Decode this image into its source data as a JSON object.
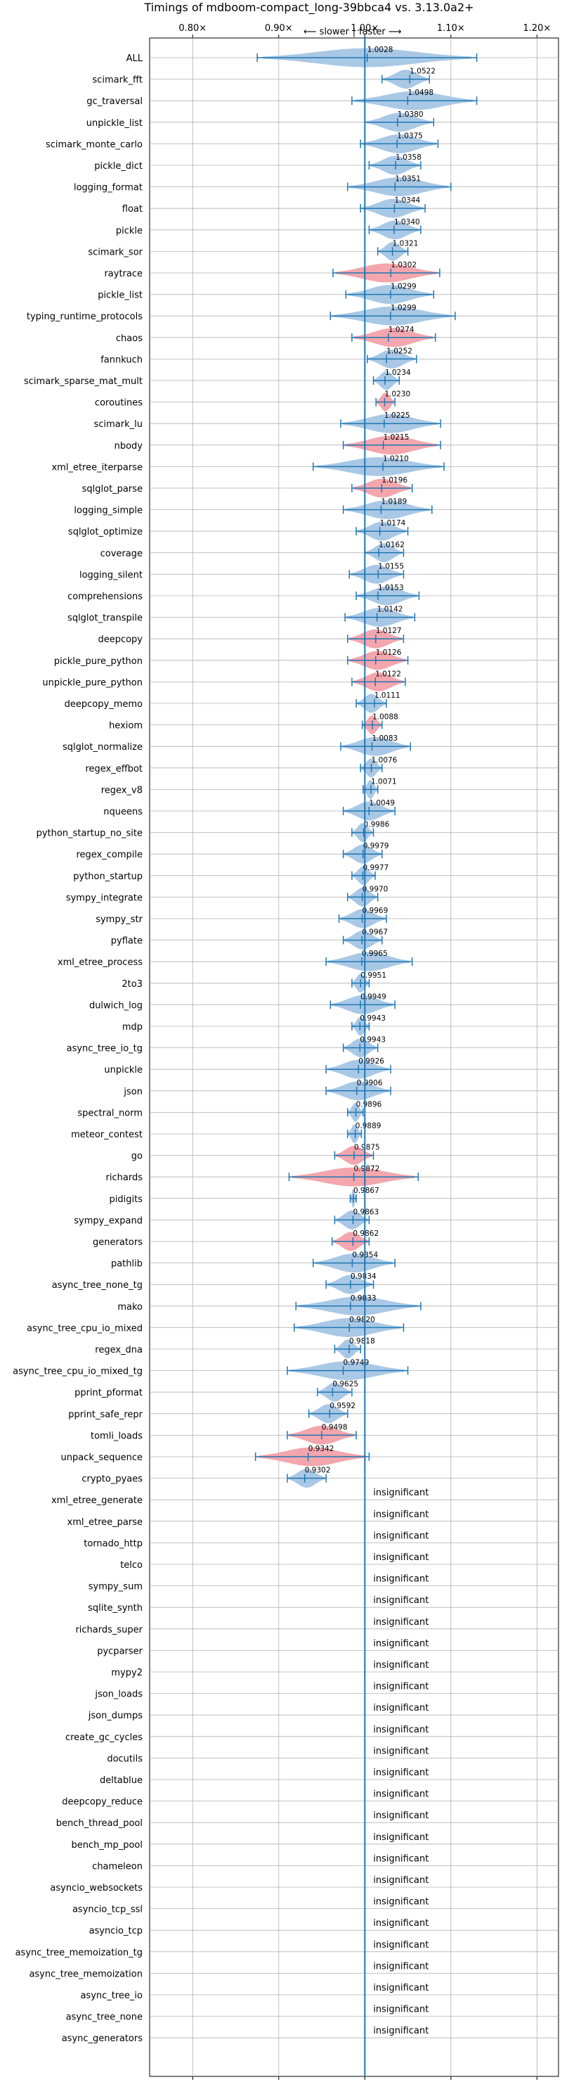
{
  "chart_data": {
    "type": "violin",
    "title": "Timings of mdboom-compact_long-39bbca4 vs. 3.13.0a2+",
    "direction_labels": {
      "slower": "⟵ slower",
      "divider": "|",
      "faster": "faster ⟶"
    },
    "xlim": [
      0.75,
      1.225
    ],
    "xticks": [
      0.8,
      0.9,
      1.0,
      1.1,
      1.2
    ],
    "xtick_labels": [
      "0.80×",
      "0.90×",
      "1.00×",
      "1.10×",
      "1.20×"
    ],
    "grid": true,
    "reference_line": 1.0,
    "colors": {
      "blue": "#1f77b4",
      "violin_blue": "#a9c8e5",
      "violin_red": "#f3a6ad",
      "grid": "#b0b0b0"
    },
    "insignificant_label": "insignificant",
    "benchmarks": [
      {
        "name": "ALL",
        "mean": 1.0028,
        "lo": 0.875,
        "hi": 1.13,
        "color": "blue"
      },
      {
        "name": "scimark_fft",
        "mean": 1.0522,
        "lo": 1.02,
        "hi": 1.075,
        "color": "blue"
      },
      {
        "name": "gc_traversal",
        "mean": 1.0498,
        "lo": 0.985,
        "hi": 1.13,
        "color": "blue"
      },
      {
        "name": "unpickle_list",
        "mean": 1.038,
        "lo": 1.0,
        "hi": 1.08,
        "color": "blue"
      },
      {
        "name": "scimark_monte_carlo",
        "mean": 1.0375,
        "lo": 0.995,
        "hi": 1.085,
        "color": "blue"
      },
      {
        "name": "pickle_dict",
        "mean": 1.0358,
        "lo": 1.005,
        "hi": 1.065,
        "color": "blue"
      },
      {
        "name": "logging_format",
        "mean": 1.0351,
        "lo": 0.98,
        "hi": 1.1,
        "color": "blue"
      },
      {
        "name": "float",
        "mean": 1.0344,
        "lo": 0.995,
        "hi": 1.07,
        "color": "blue"
      },
      {
        "name": "pickle",
        "mean": 1.034,
        "lo": 1.005,
        "hi": 1.065,
        "color": "blue"
      },
      {
        "name": "scimark_sor",
        "mean": 1.0321,
        "lo": 1.015,
        "hi": 1.05,
        "color": "blue"
      },
      {
        "name": "raytrace",
        "mean": 1.0302,
        "lo": 0.963,
        "hi": 1.087,
        "color": "red"
      },
      {
        "name": "pickle_list",
        "mean": 1.0299,
        "lo": 0.978,
        "hi": 1.08,
        "color": "blue"
      },
      {
        "name": "typing_runtime_protocols",
        "mean": 1.0299,
        "lo": 0.96,
        "hi": 1.105,
        "color": "blue"
      },
      {
        "name": "chaos",
        "mean": 1.0274,
        "lo": 0.985,
        "hi": 1.082,
        "color": "red"
      },
      {
        "name": "fannkuch",
        "mean": 1.0252,
        "lo": 1.003,
        "hi": 1.06,
        "color": "blue"
      },
      {
        "name": "scimark_sparse_mat_mult",
        "mean": 1.0234,
        "lo": 1.01,
        "hi": 1.04,
        "color": "blue"
      },
      {
        "name": "coroutines",
        "mean": 1.023,
        "lo": 1.013,
        "hi": 1.035,
        "color": "red"
      },
      {
        "name": "scimark_lu",
        "mean": 1.0225,
        "lo": 0.972,
        "hi": 1.088,
        "color": "blue"
      },
      {
        "name": "nbody",
        "mean": 1.0215,
        "lo": 0.975,
        "hi": 1.088,
        "color": "red"
      },
      {
        "name": "xml_etree_iterparse",
        "mean": 1.021,
        "lo": 0.94,
        "hi": 1.092,
        "color": "blue"
      },
      {
        "name": "sqlglot_parse",
        "mean": 1.0196,
        "lo": 0.985,
        "hi": 1.055,
        "color": "red"
      },
      {
        "name": "logging_simple",
        "mean": 1.0189,
        "lo": 0.975,
        "hi": 1.078,
        "color": "blue"
      },
      {
        "name": "sqlglot_optimize",
        "mean": 1.0174,
        "lo": 0.99,
        "hi": 1.05,
        "color": "blue"
      },
      {
        "name": "coverage",
        "mean": 1.0162,
        "lo": 1.0,
        "hi": 1.045,
        "color": "blue"
      },
      {
        "name": "logging_silent",
        "mean": 1.0155,
        "lo": 0.982,
        "hi": 1.045,
        "color": "blue"
      },
      {
        "name": "comprehensions",
        "mean": 1.0153,
        "lo": 0.99,
        "hi": 1.063,
        "color": "blue"
      },
      {
        "name": "sqlglot_transpile",
        "mean": 1.0142,
        "lo": 0.977,
        "hi": 1.058,
        "color": "blue"
      },
      {
        "name": "deepcopy",
        "mean": 1.0127,
        "lo": 0.98,
        "hi": 1.045,
        "color": "red"
      },
      {
        "name": "pickle_pure_python",
        "mean": 1.0126,
        "lo": 0.98,
        "hi": 1.05,
        "color": "red"
      },
      {
        "name": "unpickle_pure_python",
        "mean": 1.0122,
        "lo": 0.985,
        "hi": 1.047,
        "color": "red"
      },
      {
        "name": "deepcopy_memo",
        "mean": 1.0111,
        "lo": 0.99,
        "hi": 1.025,
        "color": "blue"
      },
      {
        "name": "hexiom",
        "mean": 1.0088,
        "lo": 0.997,
        "hi": 1.02,
        "color": "red"
      },
      {
        "name": "sqlglot_normalize",
        "mean": 1.0083,
        "lo": 0.972,
        "hi": 1.053,
        "color": "blue"
      },
      {
        "name": "regex_effbot",
        "mean": 1.0076,
        "lo": 0.995,
        "hi": 1.02,
        "color": "blue"
      },
      {
        "name": "regex_v8",
        "mean": 1.0071,
        "lo": 0.998,
        "hi": 1.015,
        "color": "blue"
      },
      {
        "name": "nqueens",
        "mean": 1.0049,
        "lo": 0.975,
        "hi": 1.035,
        "color": "blue"
      },
      {
        "name": "python_startup_no_site",
        "mean": 0.9986,
        "lo": 0.985,
        "hi": 1.01,
        "color": "blue"
      },
      {
        "name": "regex_compile",
        "mean": 0.9979,
        "lo": 0.975,
        "hi": 1.02,
        "color": "blue"
      },
      {
        "name": "python_startup",
        "mean": 0.9977,
        "lo": 0.985,
        "hi": 1.012,
        "color": "blue"
      },
      {
        "name": "sympy_integrate",
        "mean": 0.997,
        "lo": 0.98,
        "hi": 1.015,
        "color": "blue"
      },
      {
        "name": "sympy_str",
        "mean": 0.9969,
        "lo": 0.97,
        "hi": 1.025,
        "color": "blue"
      },
      {
        "name": "pyflate",
        "mean": 0.9967,
        "lo": 0.975,
        "hi": 1.02,
        "color": "blue"
      },
      {
        "name": "xml_etree_process",
        "mean": 0.9965,
        "lo": 0.955,
        "hi": 1.055,
        "color": "blue"
      },
      {
        "name": "2to3",
        "mean": 0.9951,
        "lo": 0.985,
        "hi": 1.005,
        "color": "blue"
      },
      {
        "name": "dulwich_log",
        "mean": 0.9949,
        "lo": 0.96,
        "hi": 1.035,
        "color": "blue"
      },
      {
        "name": "mdp",
        "mean": 0.9943,
        "lo": 0.985,
        "hi": 1.005,
        "color": "blue"
      },
      {
        "name": "async_tree_io_tg",
        "mean": 0.9943,
        "lo": 0.975,
        "hi": 1.015,
        "color": "blue"
      },
      {
        "name": "unpickle",
        "mean": 0.9926,
        "lo": 0.955,
        "hi": 1.03,
        "color": "blue"
      },
      {
        "name": "json",
        "mean": 0.9906,
        "lo": 0.955,
        "hi": 1.03,
        "color": "blue"
      },
      {
        "name": "spectral_norm",
        "mean": 0.9896,
        "lo": 0.98,
        "hi": 0.998,
        "color": "blue"
      },
      {
        "name": "meteor_contest",
        "mean": 0.9889,
        "lo": 0.98,
        "hi": 0.996,
        "color": "blue"
      },
      {
        "name": "go",
        "mean": 0.9875,
        "lo": 0.965,
        "hi": 1.01,
        "color": "red"
      },
      {
        "name": "richards",
        "mean": 0.9872,
        "lo": 0.912,
        "hi": 1.062,
        "color": "red"
      },
      {
        "name": "pidigits",
        "mean": 0.9867,
        "lo": 0.983,
        "hi": 0.99,
        "color": "blue"
      },
      {
        "name": "sympy_expand",
        "mean": 0.9863,
        "lo": 0.965,
        "hi": 1.005,
        "color": "blue"
      },
      {
        "name": "generators",
        "mean": 0.9862,
        "lo": 0.962,
        "hi": 1.005,
        "color": "red"
      },
      {
        "name": "pathlib",
        "mean": 0.9854,
        "lo": 0.94,
        "hi": 1.035,
        "color": "blue"
      },
      {
        "name": "async_tree_none_tg",
        "mean": 0.9834,
        "lo": 0.955,
        "hi": 1.01,
        "color": "blue"
      },
      {
        "name": "mako",
        "mean": 0.9833,
        "lo": 0.92,
        "hi": 1.065,
        "color": "blue"
      },
      {
        "name": "async_tree_cpu_io_mixed",
        "mean": 0.982,
        "lo": 0.918,
        "hi": 1.045,
        "color": "blue"
      },
      {
        "name": "regex_dna",
        "mean": 0.9818,
        "lo": 0.965,
        "hi": 0.995,
        "color": "blue"
      },
      {
        "name": "async_tree_cpu_io_mixed_tg",
        "mean": 0.9749,
        "lo": 0.91,
        "hi": 1.05,
        "color": "blue"
      },
      {
        "name": "pprint_pformat",
        "mean": 0.9625,
        "lo": 0.945,
        "hi": 0.985,
        "color": "blue"
      },
      {
        "name": "pprint_safe_repr",
        "mean": 0.9592,
        "lo": 0.935,
        "hi": 0.98,
        "color": "blue"
      },
      {
        "name": "tomli_loads",
        "mean": 0.9498,
        "lo": 0.91,
        "hi": 0.99,
        "color": "red"
      },
      {
        "name": "unpack_sequence",
        "mean": 0.9342,
        "lo": 0.873,
        "hi": 1.005,
        "color": "red"
      },
      {
        "name": "crypto_pyaes",
        "mean": 0.9302,
        "lo": 0.91,
        "hi": 0.955,
        "color": "blue"
      }
    ],
    "insignificant": [
      "xml_etree_generate",
      "xml_etree_parse",
      "tornado_http",
      "telco",
      "sympy_sum",
      "sqlite_synth",
      "richards_super",
      "pycparser",
      "mypy2",
      "json_loads",
      "json_dumps",
      "create_gc_cycles",
      "docutils",
      "deltablue",
      "deepcopy_reduce",
      "bench_thread_pool",
      "bench_mp_pool",
      "chameleon",
      "asyncio_websockets",
      "asyncio_tcp_ssl",
      "asyncio_tcp",
      "async_tree_memoization_tg",
      "async_tree_memoization",
      "async_tree_io",
      "async_tree_none",
      "async_generators"
    ]
  }
}
